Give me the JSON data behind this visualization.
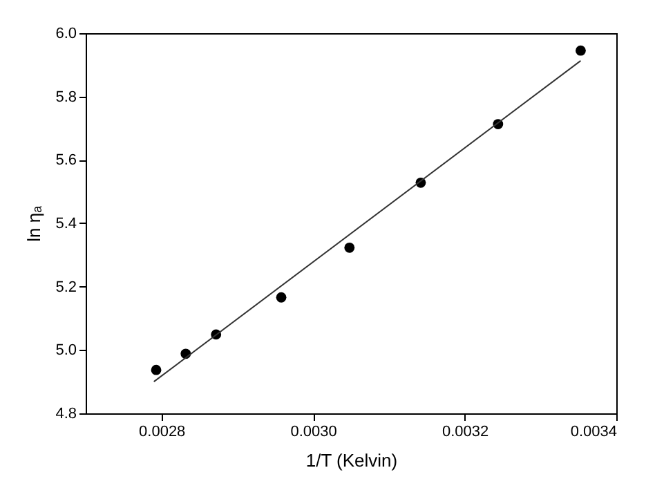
{
  "chart_data": {
    "type": "scatter",
    "xlabel": "1/T (Kelvin)",
    "ylabel": "ln ηₐ",
    "xlim": [
      0.0027,
      0.0034
    ],
    "xticks": [
      0.0028,
      {
        "value": 0.003,
        "label": "0.0030"
      },
      0.0032,
      0.0034
    ],
    "ylim": [
      4.8,
      6.0
    ],
    "yticks": [
      4.8,
      {
        "value": 5,
        "label": "5.0"
      },
      5.2,
      5.4,
      5.6,
      5.8,
      {
        "value": 6,
        "label": "6.0"
      }
    ],
    "grid": false,
    "marker": "circle",
    "series": [
      {
        "color": "#000000",
        "x": [
          0.002793,
          0.002832,
          0.002872,
          0.002958,
          0.003048,
          0.003142,
          0.003244,
          0.003353
        ],
        "values": [
          4.937,
          4.988,
          5.049,
          5.166,
          5.323,
          5.528,
          5.713,
          5.945
        ]
      },
      {
        "type": "line",
        "color": "#333333",
        "marker": "none",
        "x": [
          0.00279,
          0.003353
        ],
        "values": [
          4.9,
          5.913
        ]
      }
    ]
  }
}
